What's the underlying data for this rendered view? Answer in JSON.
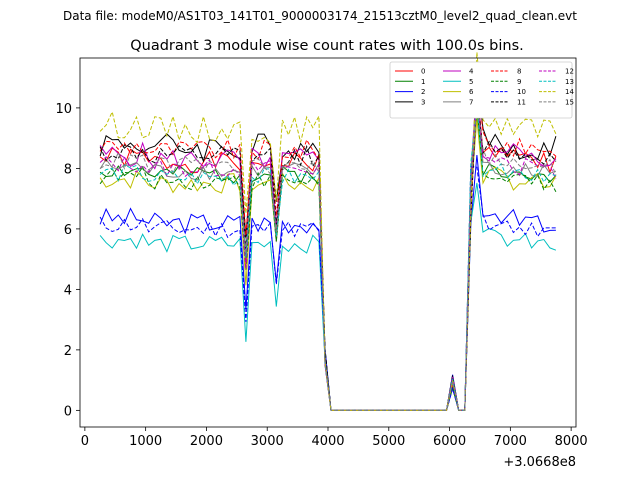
{
  "chart_data": {
    "type": "line",
    "suptitle": "Data file: modeM0/AS1T03_141T01_9000003174_21513cztM0_level2_quad_clean.evt",
    "title": "Quadrant 3 module wise count rates with 100.0s bins.",
    "x_offset_label": "+3.0668e8",
    "xlabel": "",
    "ylabel": "",
    "xlim": [
      -80,
      8080
    ],
    "ylim": [
      -0.55,
      11.65
    ],
    "x_ticks": [
      0,
      1000,
      2000,
      3000,
      4000,
      5000,
      6000,
      7000,
      8000
    ],
    "y_ticks": [
      0,
      2,
      4,
      6,
      8,
      10
    ],
    "x_ticklabels": [
      "0",
      "1000",
      "2000",
      "3000",
      "4000",
      "5000",
      "6000",
      "7000",
      "8000"
    ],
    "y_ticklabels": [
      "0",
      "2",
      "4",
      "6",
      "8",
      "10"
    ],
    "x": [
      250,
      350,
      450,
      550,
      650,
      750,
      850,
      950,
      1050,
      1150,
      1250,
      1350,
      1450,
      1550,
      1650,
      1750,
      1850,
      1950,
      2050,
      2150,
      2250,
      2350,
      2450,
      2550,
      2650,
      2750,
      2850,
      2950,
      3050,
      3150,
      3250,
      3350,
      3450,
      3550,
      3650,
      3750,
      3850,
      3950,
      4050,
      4150,
      4250,
      4350,
      4450,
      4550,
      4650,
      4750,
      4850,
      4950,
      5050,
      5150,
      5250,
      5350,
      5450,
      5550,
      5650,
      5750,
      5850,
      5950,
      6050,
      6150,
      6250,
      6350,
      6450,
      6550,
      6650,
      6750,
      6850,
      6950,
      7050,
      7150,
      7250,
      7350,
      7450,
      7550,
      7650,
      7750
    ],
    "event_indices": {
      "dip_2650": 24,
      "dip_3150": 29,
      "drop_4050": 38,
      "spike_6050": 58,
      "zero_6150": 59,
      "rise_6350": 61,
      "peak_6450": 62
    },
    "legend": {
      "location": "upper right",
      "columns": 4
    },
    "series": [
      {
        "name": "0",
        "color": "#ff0000",
        "dash": "solid",
        "base": 8.2,
        "amp": 0.35,
        "seed": 1
      },
      {
        "name": "1",
        "color": "#008000",
        "dash": "solid",
        "base": 7.8,
        "amp": 0.3,
        "seed": 2
      },
      {
        "name": "2",
        "color": "#0000ff",
        "dash": "solid",
        "base": 6.2,
        "amp": 0.35,
        "seed": 3
      },
      {
        "name": "3",
        "color": "#000000",
        "dash": "solid",
        "base": 8.7,
        "amp": 0.5,
        "seed": 4
      },
      {
        "name": "4",
        "color": "#bf00bf",
        "dash": "solid",
        "base": 8.3,
        "amp": 0.4,
        "seed": 5
      },
      {
        "name": "5",
        "color": "#00bfbf",
        "dash": "solid",
        "base": 5.5,
        "amp": 0.3,
        "seed": 6
      },
      {
        "name": "6",
        "color": "#bfbf00",
        "dash": "solid",
        "base": 7.5,
        "amp": 0.35,
        "seed": 7
      },
      {
        "name": "7",
        "color": "#808080",
        "dash": "solid",
        "base": 7.9,
        "amp": 0.3,
        "seed": 8
      },
      {
        "name": "8",
        "color": "#ff0000",
        "dash": "dashed",
        "base": 8.6,
        "amp": 0.35,
        "seed": 9
      },
      {
        "name": "9",
        "color": "#008000",
        "dash": "dashed",
        "base": 7.6,
        "amp": 0.3,
        "seed": 10
      },
      {
        "name": "10",
        "color": "#0000ff",
        "dash": "dashed",
        "base": 6.0,
        "amp": 0.3,
        "seed": 11
      },
      {
        "name": "11",
        "color": "#000000",
        "dash": "dashed",
        "base": 8.4,
        "amp": 0.35,
        "seed": 12
      },
      {
        "name": "12",
        "color": "#bf00bf",
        "dash": "dashed",
        "base": 8.0,
        "amp": 0.3,
        "seed": 13
      },
      {
        "name": "13",
        "color": "#00bfbf",
        "dash": "dashed",
        "base": 7.7,
        "amp": 0.3,
        "seed": 14
      },
      {
        "name": "14",
        "color": "#bfbf00",
        "dash": "dashed",
        "base": 9.3,
        "amp": 0.45,
        "seed": 15
      },
      {
        "name": "15",
        "color": "#808080",
        "dash": "dashed",
        "base": 8.1,
        "amp": 0.3,
        "seed": 16
      }
    ]
  }
}
